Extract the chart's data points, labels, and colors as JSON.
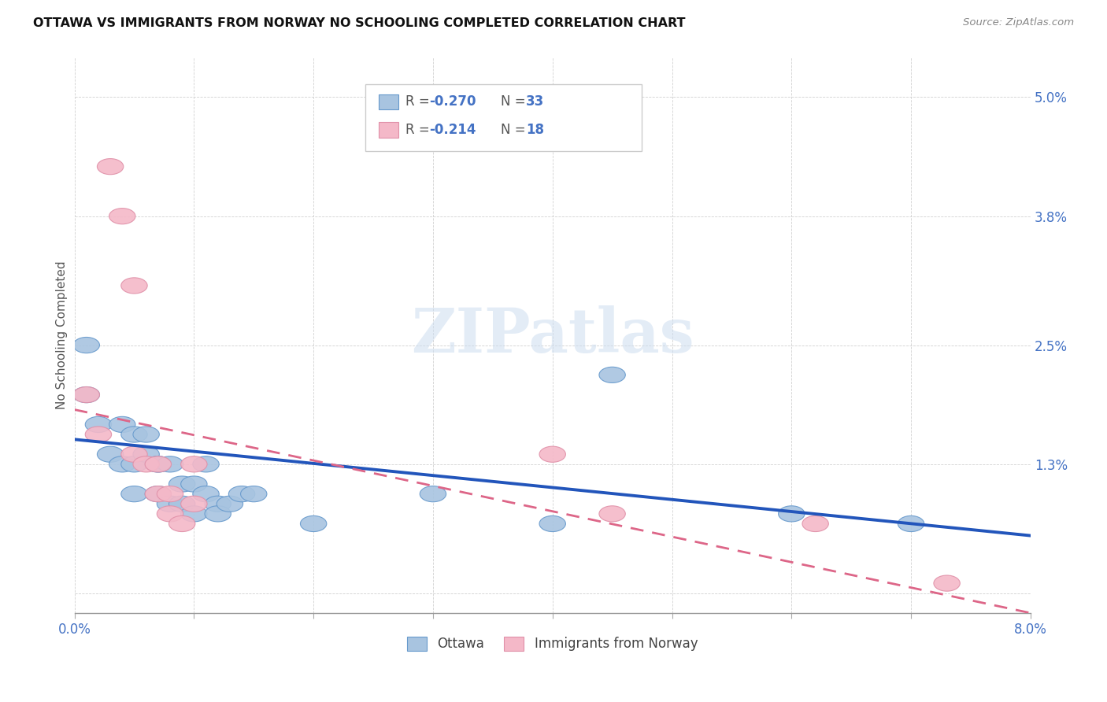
{
  "title": "OTTAWA VS IMMIGRANTS FROM NORWAY NO SCHOOLING COMPLETED CORRELATION CHART",
  "source": "Source: ZipAtlas.com",
  "ylabel": "No Schooling Completed",
  "yticks": [
    0.0,
    0.013,
    0.025,
    0.038,
    0.05
  ],
  "ytick_labels": [
    "",
    "1.3%",
    "2.5%",
    "3.8%",
    "5.0%"
  ],
  "xlim": [
    0.0,
    0.08
  ],
  "ylim": [
    -0.002,
    0.054
  ],
  "series1_label": "Ottawa",
  "series2_label": "Immigrants from Norway",
  "color1": "#a8c4e0",
  "color2": "#f4b8c8",
  "color1_edge": "#6699cc",
  "color2_edge": "#e090a8",
  "trendline1_color": "#2255bb",
  "trendline2_color": "#dd6688",
  "watermark": "ZIPatlas",
  "legend_r1": "R = -0.270",
  "legend_n1": "N = 33",
  "legend_r2": "R = -0.214",
  "legend_n2": "N = 18",
  "ottawa_x": [
    0.001,
    0.001,
    0.002,
    0.003,
    0.004,
    0.004,
    0.005,
    0.005,
    0.005,
    0.006,
    0.006,
    0.007,
    0.007,
    0.007,
    0.008,
    0.008,
    0.009,
    0.009,
    0.01,
    0.01,
    0.011,
    0.011,
    0.012,
    0.012,
    0.013,
    0.014,
    0.015,
    0.02,
    0.03,
    0.04,
    0.045,
    0.06,
    0.07
  ],
  "ottawa_y": [
    0.025,
    0.02,
    0.017,
    0.014,
    0.017,
    0.013,
    0.016,
    0.013,
    0.01,
    0.014,
    0.016,
    0.013,
    0.013,
    0.01,
    0.013,
    0.009,
    0.009,
    0.011,
    0.011,
    0.008,
    0.01,
    0.013,
    0.009,
    0.008,
    0.009,
    0.01,
    0.01,
    0.007,
    0.01,
    0.007,
    0.022,
    0.008,
    0.007
  ],
  "norway_x": [
    0.001,
    0.002,
    0.003,
    0.004,
    0.005,
    0.005,
    0.006,
    0.007,
    0.007,
    0.008,
    0.008,
    0.009,
    0.01,
    0.01,
    0.04,
    0.045,
    0.062,
    0.073
  ],
  "norway_y": [
    0.02,
    0.016,
    0.043,
    0.038,
    0.031,
    0.014,
    0.013,
    0.013,
    0.01,
    0.01,
    0.008,
    0.007,
    0.013,
    0.009,
    0.014,
    0.008,
    0.007,
    0.001
  ],
  "trendline1_x": [
    0.0,
    0.08
  ],
  "trendline1_y": [
    0.0155,
    0.0058
  ],
  "trendline2_x": [
    0.0,
    0.08
  ],
  "trendline2_y": [
    0.0185,
    -0.002
  ]
}
